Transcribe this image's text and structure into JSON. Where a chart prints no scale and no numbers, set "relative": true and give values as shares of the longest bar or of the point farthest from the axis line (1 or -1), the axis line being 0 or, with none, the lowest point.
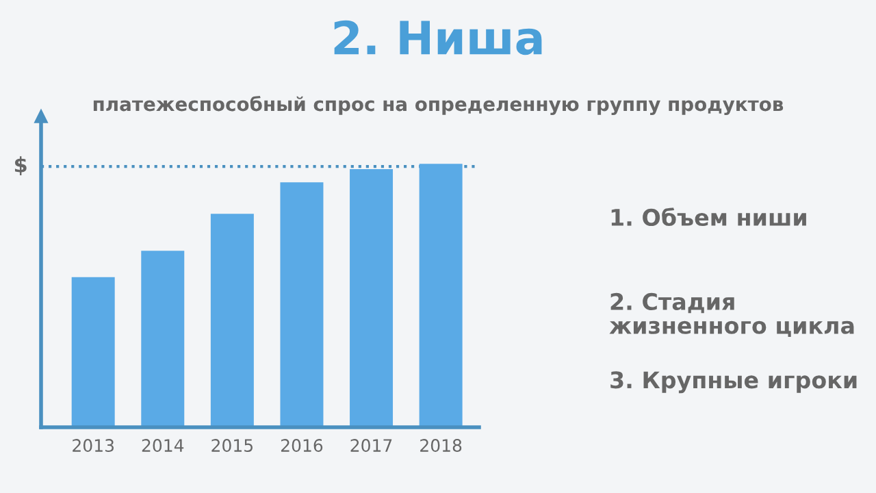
{
  "chart_data": {
    "type": "bar",
    "title": "2. Ниша",
    "subtitle": "платежеспособный спрос на определенную группу продуктов",
    "categories": [
      "2013",
      "2014",
      "2015",
      "2016",
      "2017",
      "2018"
    ],
    "values": [
      0.57,
      0.67,
      0.81,
      0.93,
      0.98,
      1.0
    ],
    "color": "#5aaae6",
    "relative": true,
    "ref_lines": [
      {
        "axis": "y",
        "value": 0.99,
        "label": "$",
        "color": "#4a90c0",
        "line_style": "dotted"
      }
    ],
    "annotations": [
      "1. Объем ниши",
      "2. Стадия\nжизненного цикла",
      "3. Крупные игроки"
    ],
    "grid": false,
    "legend": false
  }
}
